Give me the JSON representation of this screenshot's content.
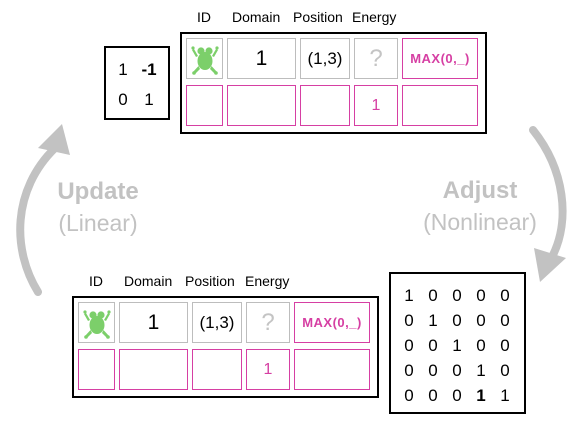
{
  "top_table": {
    "headers": [
      "ID",
      "Domain",
      "Position",
      "Energy"
    ],
    "domain": "1",
    "position": "(1,3)",
    "energy": "?",
    "aggregate": "MAX(0,_)",
    "energy_row2": "1"
  },
  "bottom_table": {
    "headers": [
      "ID",
      "Domain",
      "Position",
      "Energy"
    ],
    "domain": "1",
    "position": "(1,3)",
    "energy": "?",
    "aggregate": "MAX(0,_)",
    "energy_row2": "1"
  },
  "small_matrix": [
    [
      "1",
      "-1"
    ],
    [
      "0",
      "1"
    ]
  ],
  "large_matrix": [
    [
      "1",
      "0",
      "0",
      "0",
      "0"
    ],
    [
      "0",
      "1",
      "0",
      "0",
      "0"
    ],
    [
      "0",
      "0",
      "1",
      "0",
      "0"
    ],
    [
      "0",
      "0",
      "0",
      "1",
      "0"
    ],
    [
      "0",
      "0",
      "0",
      "1",
      "1"
    ]
  ],
  "left_label": {
    "main": "Update",
    "sub": "(Linear)"
  },
  "right_label": {
    "main": "Adjust",
    "sub": "(Nonlinear)"
  },
  "colors": {
    "accent": "#d63fa3",
    "arrow": "#c2c2c2",
    "frog": "#7ccf6a",
    "gray_border": "#bdbdbd"
  },
  "icons": {
    "entity_icon": "frog-icon"
  }
}
